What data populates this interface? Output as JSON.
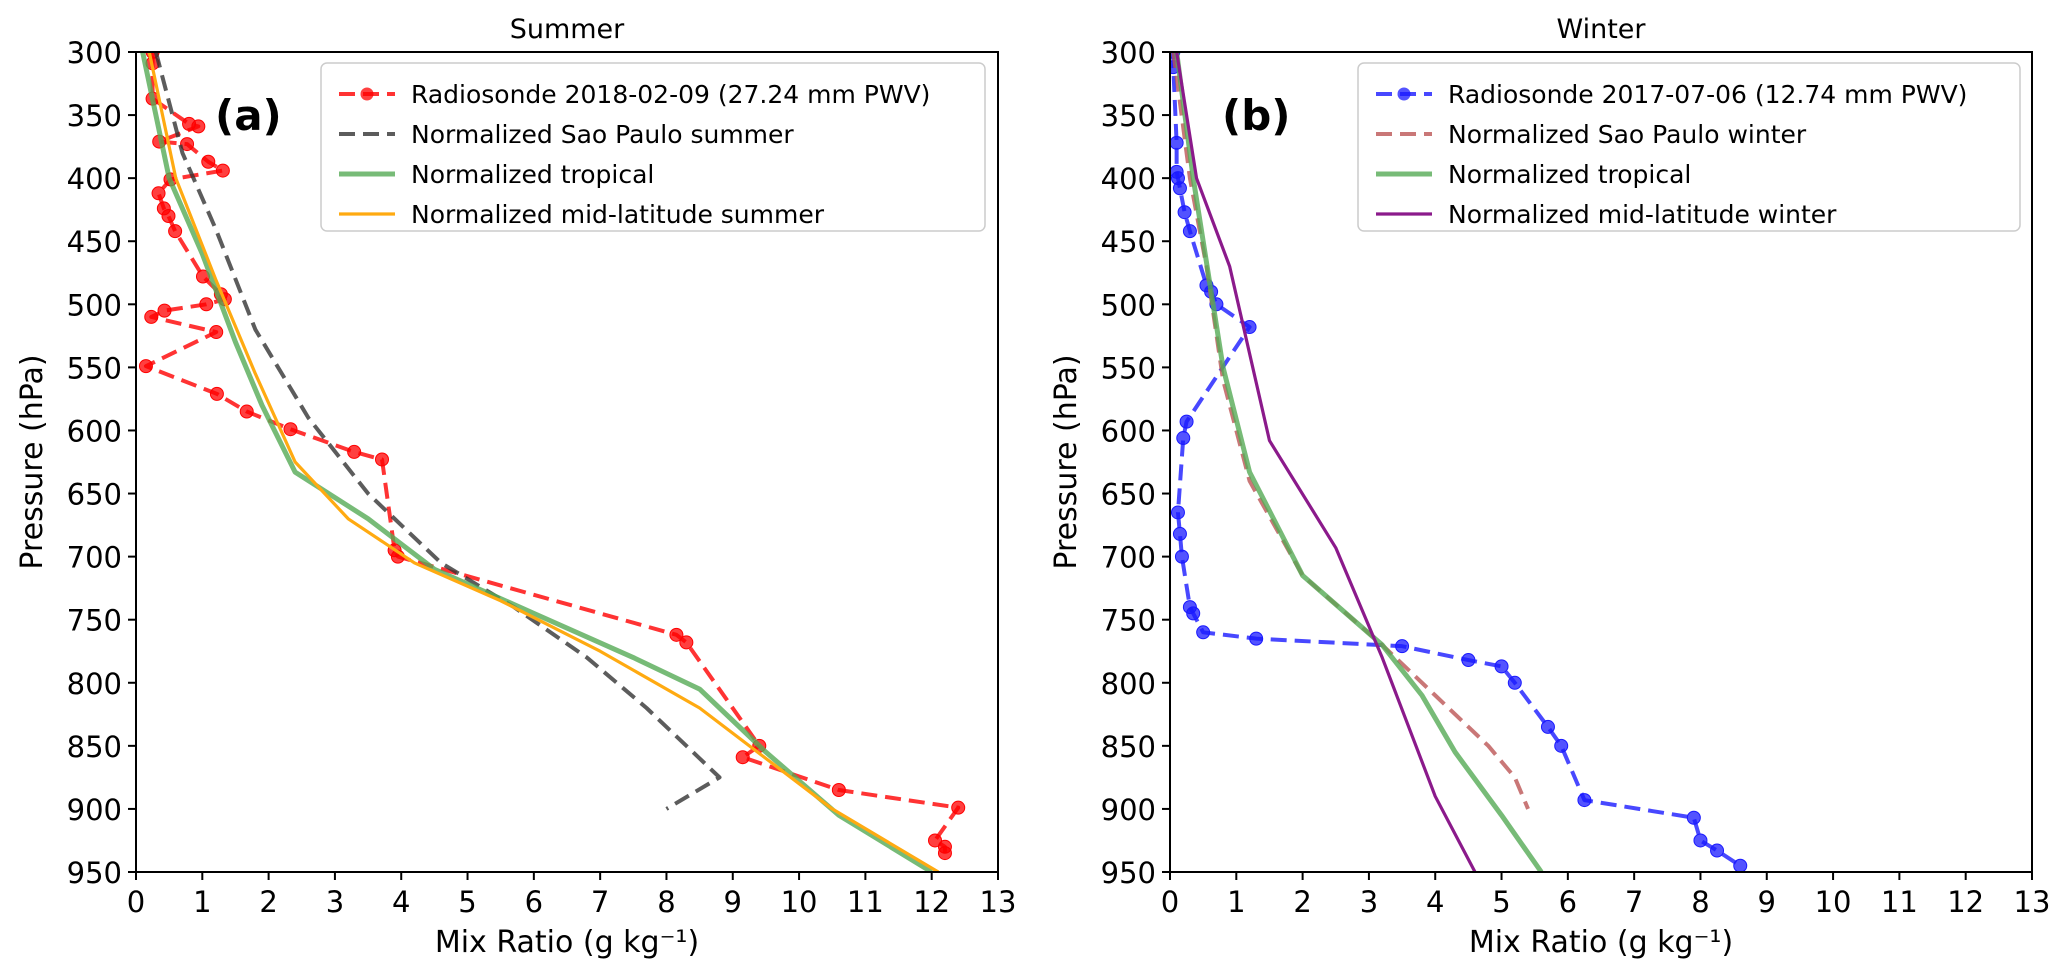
{
  "chart_data": [
    {
      "type": "line",
      "panel_label": "(a)",
      "title": "Summer",
      "xlabel": "Mix Ratio (g kg⁻¹)",
      "ylabel": "Pressure (hPa)",
      "xlim": [
        0,
        13
      ],
      "ylim": [
        950,
        300
      ],
      "y_inverted": true,
      "xticks": [
        0,
        1,
        2,
        3,
        4,
        5,
        6,
        7,
        8,
        9,
        10,
        11,
        12,
        13
      ],
      "yticks": [
        300,
        350,
        400,
        450,
        500,
        550,
        600,
        650,
        700,
        750,
        800,
        850,
        900,
        950
      ],
      "legend_placement": "top-right",
      "series": [
        {
          "name": "Radiosonde 2018-02-09 (27.24 mm PWV)",
          "color": "#ff0000",
          "style": "dashed-marker",
          "x": [
            0.25,
            0.25,
            0.25,
            0.8,
            0.94,
            0.35,
            0.77,
            1.09,
            1.31,
            0.52,
            0.34,
            0.42,
            0.49,
            0.59,
            1.01,
            1.28,
            1.34,
            1.06,
            0.43,
            0.23,
            1.21,
            0.15,
            1.22,
            1.67,
            2.33,
            3.29,
            3.71,
            3.9,
            3.95,
            8.15,
            8.3,
            9.4,
            9.15,
            10.6,
            12.4,
            12.05,
            12.2,
            12.2
          ],
          "p": [
            300,
            309,
            337,
            357,
            359,
            371,
            373,
            387,
            394,
            401,
            412,
            424,
            430,
            442,
            478,
            492,
            496,
            500,
            505,
            510,
            522,
            549,
            571,
            585,
            599,
            617,
            623,
            695,
            700,
            762,
            768,
            850,
            859,
            885,
            899,
            925,
            930,
            935
          ]
        },
        {
          "name": "Normalized Sao Paulo summer",
          "color": "#333333",
          "style": "dashed",
          "x": [
            0.3,
            0.7,
            1.2,
            1.8,
            2.6,
            3.5,
            4.6,
            5.7,
            6.8,
            7.7,
            8.5,
            8.8,
            8.0
          ],
          "p": [
            300,
            380,
            440,
            520,
            590,
            650,
            705,
            740,
            780,
            820,
            860,
            875,
            900
          ]
        },
        {
          "name": "Normalized tropical",
          "color": "#55aa55",
          "style": "solid-thick",
          "x": [
            0.1,
            0.5,
            1.0,
            1.5,
            1.9,
            2.4,
            3.5,
            4.5,
            6.0,
            7.5,
            8.5,
            9.5,
            10.6,
            12.0
          ],
          "p": [
            300,
            400,
            460,
            530,
            580,
            633,
            670,
            710,
            745,
            780,
            805,
            855,
            905,
            950
          ]
        },
        {
          "name": "Normalized mid-latitude summer",
          "color": "#ffaa11",
          "style": "solid",
          "x": [
            0.2,
            0.6,
            1.2,
            1.8,
            2.4,
            3.2,
            4.2,
            5.5,
            7.0,
            8.5,
            9.5,
            10.5,
            12.1
          ],
          "p": [
            300,
            400,
            480,
            555,
            625,
            670,
            705,
            735,
            775,
            820,
            860,
            900,
            950
          ]
        }
      ]
    },
    {
      "type": "line",
      "panel_label": "(b)",
      "title": "Winter",
      "xlabel": "Mix Ratio (g kg⁻¹)",
      "ylabel": "Pressure (hPa)",
      "xlim": [
        0,
        13
      ],
      "ylim": [
        950,
        300
      ],
      "y_inverted": true,
      "xticks": [
        0,
        1,
        2,
        3,
        4,
        5,
        6,
        7,
        8,
        9,
        10,
        11,
        12,
        13
      ],
      "yticks": [
        300,
        350,
        400,
        450,
        500,
        550,
        600,
        650,
        700,
        750,
        800,
        850,
        900,
        950
      ],
      "legend_placement": "top-right",
      "series": [
        {
          "name": "Radiosonde 2017-07-06 (12.74 mm PWV)",
          "color": "#1a1aff",
          "style": "dashed-marker",
          "x": [
            0.05,
            0.05,
            0.1,
            0.1,
            0.12,
            0.15,
            0.22,
            0.3,
            0.55,
            0.62,
            0.7,
            1.2,
            0.25,
            0.2,
            0.12,
            0.15,
            0.18,
            0.3,
            0.35,
            0.5,
            1.3,
            3.5,
            4.5,
            5.0,
            5.2,
            5.7,
            5.9,
            6.25,
            7.9,
            8.0,
            8.25,
            8.6
          ],
          "p": [
            300,
            312,
            372,
            395,
            400,
            408,
            427,
            442,
            485,
            490,
            500,
            518,
            593,
            606,
            665,
            682,
            700,
            740,
            745,
            760,
            765,
            771,
            782,
            787,
            800,
            835,
            850,
            893,
            907,
            925,
            933,
            945
          ]
        },
        {
          "name": "Normalized Sao Paulo winter",
          "color": "#bb5555",
          "style": "dashed",
          "x": [
            0.05,
            0.3,
            0.55,
            0.8,
            1.2,
            2.0,
            3.2,
            4.0,
            4.8,
            5.2,
            5.4
          ],
          "p": [
            300,
            400,
            470,
            560,
            640,
            715,
            770,
            810,
            850,
            875,
            900
          ]
        },
        {
          "name": "Normalized tropical",
          "color": "#55aa55",
          "style": "solid-thick",
          "x": [
            0.1,
            0.35,
            0.8,
            1.2,
            2.0,
            3.2,
            3.8,
            4.3,
            5.0,
            5.6
          ],
          "p": [
            300,
            400,
            550,
            633,
            715,
            770,
            810,
            855,
            905,
            950
          ]
        },
        {
          "name": "Normalized mid-latitude winter",
          "color": "#8b1a8b",
          "style": "solid",
          "x": [
            0.1,
            0.4,
            0.9,
            1.5,
            2.5,
            3.2,
            4.0,
            4.6
          ],
          "p": [
            300,
            400,
            470,
            608,
            693,
            780,
            890,
            950
          ]
        }
      ]
    }
  ]
}
